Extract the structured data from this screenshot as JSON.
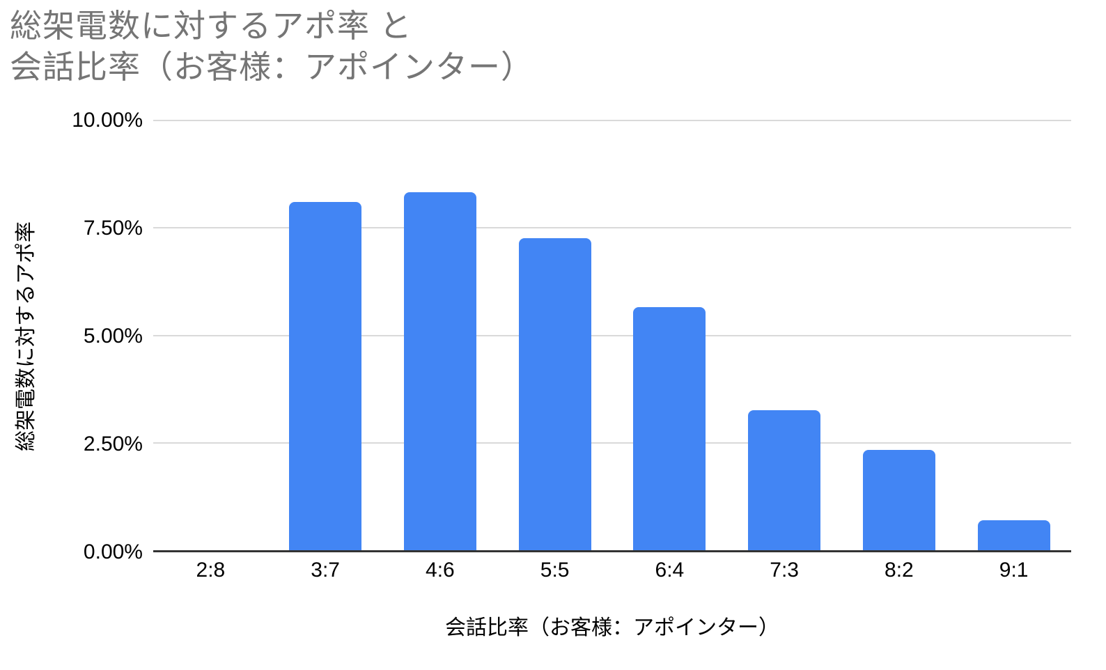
{
  "chart_data": {
    "type": "bar",
    "title": "総架電数に対するアポ率 と\n会話比率（お客様：アポインター）",
    "xlabel": "会話比率（お客様：アポインター）",
    "ylabel": "総架電数に対するアポ率",
    "categories": [
      "2:8",
      "3:7",
      "4:6",
      "5:5",
      "6:4",
      "7:3",
      "8:2",
      "9:1"
    ],
    "values": [
      0,
      8.1,
      8.33,
      7.26,
      5.65,
      3.26,
      2.33,
      0.7
    ],
    "value_unit": "percent",
    "ylim": [
      0,
      10
    ],
    "yticks": [
      {
        "label": "0.00%",
        "value": 0
      },
      {
        "label": "2.50%",
        "value": 2.5
      },
      {
        "label": "5.00%",
        "value": 5
      },
      {
        "label": "7.50%",
        "value": 7.5
      },
      {
        "label": "10.00%",
        "value": 10
      }
    ],
    "grid": true,
    "legend": "none",
    "colors": {
      "bar": "#4285f4",
      "title_text": "#757575",
      "axis_text": "#000000",
      "gridline": "#d9d9d9",
      "axis_line": "#333333",
      "background": "#ffffff"
    }
  }
}
